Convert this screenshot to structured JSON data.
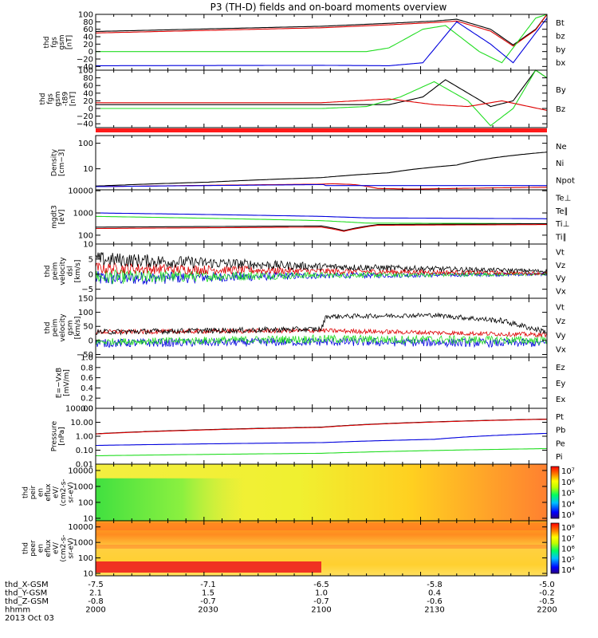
{
  "title": "P3 (TH-D) fields and on-board moments overview",
  "colors": {
    "black": "#000000",
    "red": "#dd0000",
    "green": "#22dd22",
    "blue": "#0000dd",
    "bar": "#ff1a1a"
  },
  "colorbar1": {
    "labels": [
      "10⁷",
      "10⁶",
      "10⁵",
      "10⁴",
      "10³"
    ]
  },
  "colorbar2": {
    "labels": [
      "10⁸",
      "10⁷",
      "10⁶",
      "10⁵",
      "10⁴"
    ]
  },
  "ephemeris": {
    "rows": [
      {
        "label": "thd_X-GSM",
        "values": [
          "-7.5",
          "-7.1",
          "-6.5",
          "-5.8",
          "-5.0"
        ]
      },
      {
        "label": "thd_Y-GSM",
        "values": [
          "2.1",
          "1.5",
          "1.0",
          "0.4",
          "-0.2"
        ]
      },
      {
        "label": "thd_Z-GSM",
        "values": [
          "-0.8",
          "-0.7",
          "-0.7",
          "-0.6",
          "-0.5"
        ]
      },
      {
        "label": "hhmm",
        "values": [
          "2000",
          "2030",
          "2100",
          "2130",
          "2200"
        ]
      }
    ],
    "date": "2013 Oct 03"
  },
  "chart_data": [
    {
      "type": "line",
      "ylabel": [
        "thd",
        "fgs",
        "gsm",
        "[nT]"
      ],
      "yticks": [
        "100",
        "80",
        "60",
        "40",
        "20",
        "0",
        "−20",
        "−40"
      ],
      "ylim": [
        -50,
        100
      ],
      "legend": [
        {
          "name": "Bt",
          "color": "black"
        },
        {
          "name": "bz",
          "color": "red"
        },
        {
          "name": "by",
          "color": "green"
        },
        {
          "name": "bx",
          "color": "blue"
        }
      ],
      "series": [
        {
          "name": "Bt",
          "color": "black",
          "x": [
            20.0,
            21.0,
            21.3,
            21.5,
            21.6,
            21.75,
            21.85,
            21.95,
            22.0
          ],
          "y": [
            54,
            68,
            76,
            82,
            87,
            60,
            18,
            60,
            100
          ]
        },
        {
          "name": "bz",
          "color": "red",
          "x": [
            20.0,
            21.0,
            21.3,
            21.5,
            21.6,
            21.75,
            21.85,
            21.95,
            22.0
          ],
          "y": [
            50,
            64,
            72,
            78,
            82,
            55,
            15,
            58,
            100
          ]
        },
        {
          "name": "by",
          "color": "green",
          "x": [
            20.0,
            21.0,
            21.2,
            21.3,
            21.45,
            21.55,
            21.7,
            21.8,
            21.95,
            22.0
          ],
          "y": [
            0,
            0,
            0,
            10,
            60,
            70,
            0,
            -30,
            90,
            100
          ]
        },
        {
          "name": "bx",
          "color": "blue",
          "x": [
            20.0,
            21.0,
            21.3,
            21.45,
            21.6,
            21.75,
            21.85,
            22.0
          ],
          "y": [
            -38,
            -37,
            -38,
            -30,
            80,
            20,
            -30,
            90
          ]
        }
      ]
    },
    {
      "type": "line",
      "ylabel": [
        "thd",
        "fgs",
        "gsm",
        "-t89",
        "[nT]"
      ],
      "yticks": [
        "100",
        "80",
        "60",
        "40",
        "20",
        "0",
        "−20",
        "−40"
      ],
      "ylim": [
        -50,
        100
      ],
      "legend": [
        {
          "name": "By",
          "color": "green"
        },
        {
          "name": "Bz",
          "color": "red"
        }
      ],
      "series": [
        {
          "name": "",
          "color": "black",
          "x": [
            20.0,
            21.0,
            21.3,
            21.45,
            21.55,
            21.75,
            21.85,
            21.95,
            22.0
          ],
          "y": [
            10,
            10,
            10,
            30,
            75,
            5,
            20,
            100,
            80
          ]
        },
        {
          "name": "By",
          "color": "green",
          "x": [
            20.0,
            21.0,
            21.2,
            21.35,
            21.5,
            21.65,
            21.75,
            21.85,
            21.95,
            22.0
          ],
          "y": [
            0,
            0,
            5,
            30,
            70,
            20,
            -45,
            0,
            100,
            80
          ]
        },
        {
          "name": "Bz",
          "color": "red",
          "x": [
            20.0,
            20.7,
            21.0,
            21.3,
            21.5,
            21.65,
            21.8,
            22.0
          ],
          "y": [
            15,
            15,
            15,
            25,
            10,
            5,
            20,
            -5
          ]
        }
      ]
    },
    {
      "type": "line",
      "ylabel": [
        "Density",
        "[cm−3]"
      ],
      "yscale": "log",
      "yticks": [
        "100",
        "10"
      ],
      "ylim": [
        1.5,
        200
      ],
      "legend": [
        {
          "name": "Ne",
          "color": "red"
        },
        {
          "name": "Ni",
          "color": "black"
        },
        {
          "name": "Npot",
          "color": "blue"
        }
      ],
      "series": [
        {
          "name": "Ni",
          "color": "black",
          "x": [
            20.0,
            20.5,
            21.0,
            21.3,
            21.6,
            22.0
          ],
          "y": [
            2.1,
            3.0,
            4.5,
            7,
            14,
            45
          ]
        },
        {
          "name": "Ne",
          "color": "red",
          "x": [
            20.0,
            21.0,
            21.05,
            21.15,
            21.25,
            21.4,
            22.0
          ],
          "y": [
            2.0,
            2.5,
            2.6,
            2.4,
            1.7,
            1.6,
            1.9
          ]
        },
        {
          "name": "Npot",
          "color": "blue",
          "x": [
            20.0,
            21.0,
            21.005,
            21.01,
            21.02,
            22.0
          ],
          "y": [
            2.0,
            2.4,
            180,
            2.4,
            2.2,
            2.2
          ]
        }
      ]
    },
    {
      "type": "line",
      "ylabel": [
        "mgdt3",
        "[eV]"
      ],
      "yscale": "log",
      "yticks": [
        "10000",
        "1000",
        "100"
      ],
      "ylim": [
        40,
        11000
      ],
      "legend": [
        {
          "name": "Te⊥",
          "color": "red"
        },
        {
          "name": "Te∥",
          "color": "black"
        },
        {
          "name": "Ti⊥",
          "color": "blue"
        },
        {
          "name": "Ti∥",
          "color": "green"
        }
      ],
      "series": [
        {
          "name": "Ti⊥",
          "color": "blue",
          "x": [
            20.0,
            21.0,
            21.2,
            22.0
          ],
          "y": [
            1000,
            700,
            600,
            550
          ]
        },
        {
          "name": "Ti∥",
          "color": "green",
          "x": [
            20.0,
            21.0,
            21.2,
            22.0
          ],
          "y": [
            700,
            450,
            350,
            330
          ]
        },
        {
          "name": "Te∥",
          "color": "black",
          "x": [
            20.0,
            21.0,
            21.1,
            21.25,
            22.0
          ],
          "y": [
            230,
            260,
            160,
            300,
            330
          ]
        },
        {
          "name": "Te⊥",
          "color": "red",
          "x": [
            20.0,
            21.0,
            21.1,
            21.25,
            22.0
          ],
          "y": [
            200,
            230,
            150,
            280,
            300
          ]
        }
      ]
    },
    {
      "type": "line",
      "noisy": true,
      "ylabel": [
        "thd",
        "peim",
        "velocity",
        "dsl",
        "[km/s]"
      ],
      "yticks": [
        "10",
        "5",
        "0",
        "−5"
      ],
      "ylim": [
        -8,
        10
      ],
      "legend": [
        {
          "name": "Vt",
          "color": "black"
        },
        {
          "name": "Vz",
          "color": "red"
        },
        {
          "name": "Vy",
          "color": "green"
        },
        {
          "name": "Vx",
          "color": "blue"
        }
      ],
      "series": [
        {
          "name": "Vx",
          "color": "blue",
          "x": [
            20.0,
            21.0,
            22.0
          ],
          "y": [
            -1.5,
            -0.5,
            0
          ],
          "noise": [
            2.5,
            1.0,
            0.5
          ]
        },
        {
          "name": "Vy",
          "color": "green",
          "x": [
            20.0,
            21.0,
            22.0
          ],
          "y": [
            -1.0,
            -0.3,
            0
          ],
          "noise": [
            2.5,
            1.0,
            0.5
          ]
        },
        {
          "name": "Vz",
          "color": "red",
          "x": [
            20.0,
            21.0,
            22.0
          ],
          "y": [
            2.0,
            1.0,
            0.3
          ],
          "noise": [
            2.0,
            1.0,
            0.5
          ]
        },
        {
          "name": "Vt",
          "color": "black",
          "x": [
            20.0,
            21.0,
            22.0
          ],
          "y": [
            5.0,
            2.5,
            1.0
          ],
          "noise": [
            2.5,
            1.2,
            0.6
          ]
        }
      ]
    },
    {
      "type": "line",
      "noisy": true,
      "ylabel": [
        "thd",
        "peim",
        "velocity",
        "gsm",
        "[km/s]"
      ],
      "yticks": [
        "150",
        "100",
        "50",
        "0",
        "−50"
      ],
      "ylim": [
        -60,
        150
      ],
      "legend": [
        {
          "name": "Vt",
          "color": "black"
        },
        {
          "name": "Vz",
          "color": "red"
        },
        {
          "name": "Vy",
          "color": "green"
        },
        {
          "name": "Vx",
          "color": "blue"
        }
      ],
      "series": [
        {
          "name": "Vx",
          "color": "blue",
          "x": [
            20.0,
            21.0,
            22.0
          ],
          "y": [
            -10,
            -5,
            -10
          ],
          "noise": [
            15,
            15,
            15
          ]
        },
        {
          "name": "Vy",
          "color": "green",
          "x": [
            20.0,
            21.0,
            22.0
          ],
          "y": [
            -5,
            5,
            0
          ],
          "noise": [
            12,
            15,
            15
          ]
        },
        {
          "name": "Vz",
          "color": "red",
          "x": [
            20.0,
            21.0,
            22.0
          ],
          "y": [
            30,
            35,
            20
          ],
          "noise": [
            8,
            8,
            8
          ]
        },
        {
          "name": "Vt",
          "color": "black",
          "x": [
            20.0,
            21.0,
            21.02,
            21.5,
            21.8,
            22.0
          ],
          "y": [
            30,
            40,
            85,
            90,
            70,
            30
          ],
          "noise": [
            10,
            10,
            8,
            8,
            10,
            10
          ]
        }
      ]
    },
    {
      "type": "line",
      "ylabel": [
        "E=−VxB",
        "[mV/m]"
      ],
      "yticks": [
        "1.0",
        "0.8",
        "0.6",
        "0.4",
        "0.2",
        "0.0"
      ],
      "ylim": [
        0,
        1
      ],
      "legend": [
        {
          "name": "Ez",
          "color": "red"
        },
        {
          "name": "Ey",
          "color": "green"
        },
        {
          "name": "Ex",
          "color": "blue"
        }
      ],
      "series": []
    },
    {
      "type": "line",
      "ylabel": [
        "Pressure",
        "[nPa]"
      ],
      "yscale": "log",
      "yticks": [
        "100.00",
        "10.00",
        "1.00",
        "0.10",
        "0.01"
      ],
      "ylim": [
        0.01,
        100
      ],
      "legend": [
        {
          "name": "Pt",
          "color": "black"
        },
        {
          "name": "Pb",
          "color": "red"
        },
        {
          "name": "Pe",
          "color": "green"
        },
        {
          "name": "Pi",
          "color": "blue"
        }
      ],
      "series": [
        {
          "name": "Pt",
          "color": "black",
          "x": [
            20.0,
            21.0,
            22.0
          ],
          "y": [
            1.5,
            4.5,
            17
          ]
        },
        {
          "name": "Pb",
          "color": "red",
          "x": [
            20.0,
            21.0,
            22.0
          ],
          "y": [
            1.45,
            4.3,
            16.5
          ]
        },
        {
          "name": "Pi",
          "color": "blue",
          "x": [
            20.0,
            21.0,
            21.5,
            22.0
          ],
          "y": [
            0.22,
            0.35,
            0.6,
            1.6
          ]
        },
        {
          "name": "Pe",
          "color": "green",
          "x": [
            20.0,
            21.0,
            22.0
          ],
          "y": [
            0.04,
            0.06,
            0.13
          ]
        }
      ]
    },
    {
      "type": "heatmap",
      "ylabel": [
        "thd",
        "peir",
        "en",
        "eflux",
        "eV/",
        "(cm2-s-",
        "sr-eV)"
      ],
      "yscale": "log",
      "yticks": [
        "10000",
        "1000",
        "100",
        "10"
      ],
      "ylim": [
        7,
        25000
      ]
    },
    {
      "type": "heatmap",
      "ylabel": [
        "thd",
        "peer",
        "en",
        "eflux",
        "eV/",
        "(cm2-s-",
        "sr-eV)"
      ],
      "yscale": "log",
      "yticks": [
        "10000",
        "1000",
        "100",
        "10"
      ],
      "ylim": [
        7,
        25000
      ]
    }
  ]
}
